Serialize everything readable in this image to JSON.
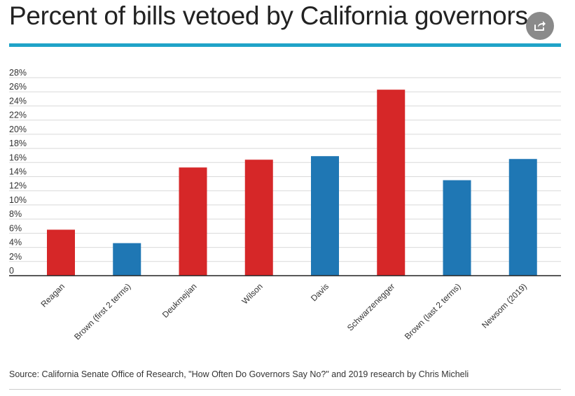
{
  "header": {
    "title": "Percent of bills vetoed by California governors",
    "share_icon": "share-icon"
  },
  "colors": {
    "republican": "#d62728",
    "democrat": "#1f77b4",
    "accent_rule": "#1fa3c8"
  },
  "chart_data": {
    "type": "bar",
    "title": "Percent of bills vetoed by California governors",
    "categories": [
      "Reagan",
      "Brown (first 2 terms)",
      "Deukmejian",
      "Wilson",
      "Davis",
      "Schwarzenegger",
      "Brown (last 2 terms)",
      "Newsom (2019)"
    ],
    "values": [
      6.5,
      4.6,
      15.3,
      16.4,
      16.9,
      26.3,
      13.5,
      16.5
    ],
    "bar_colors": [
      "#d62728",
      "#1f77b4",
      "#d62728",
      "#d62728",
      "#1f77b4",
      "#d62728",
      "#1f77b4",
      "#1f77b4"
    ],
    "xlabel": "",
    "ylabel": "",
    "ylim": [
      0,
      28
    ],
    "yticks": [
      0,
      2,
      4,
      6,
      8,
      10,
      12,
      14,
      16,
      18,
      20,
      22,
      24,
      26,
      28
    ],
    "ytick_labels": [
      "0",
      "2%",
      "4%",
      "6%",
      "8%",
      "10%",
      "12%",
      "14%",
      "16%",
      "18%",
      "20%",
      "22%",
      "24%",
      "26%",
      "28%"
    ],
    "grid": true,
    "legend": "none"
  },
  "footer": {
    "source": "Source: California Senate Office of Research, \"How Often Do Governors Say No?\" and 2019 research by Chris Micheli"
  }
}
